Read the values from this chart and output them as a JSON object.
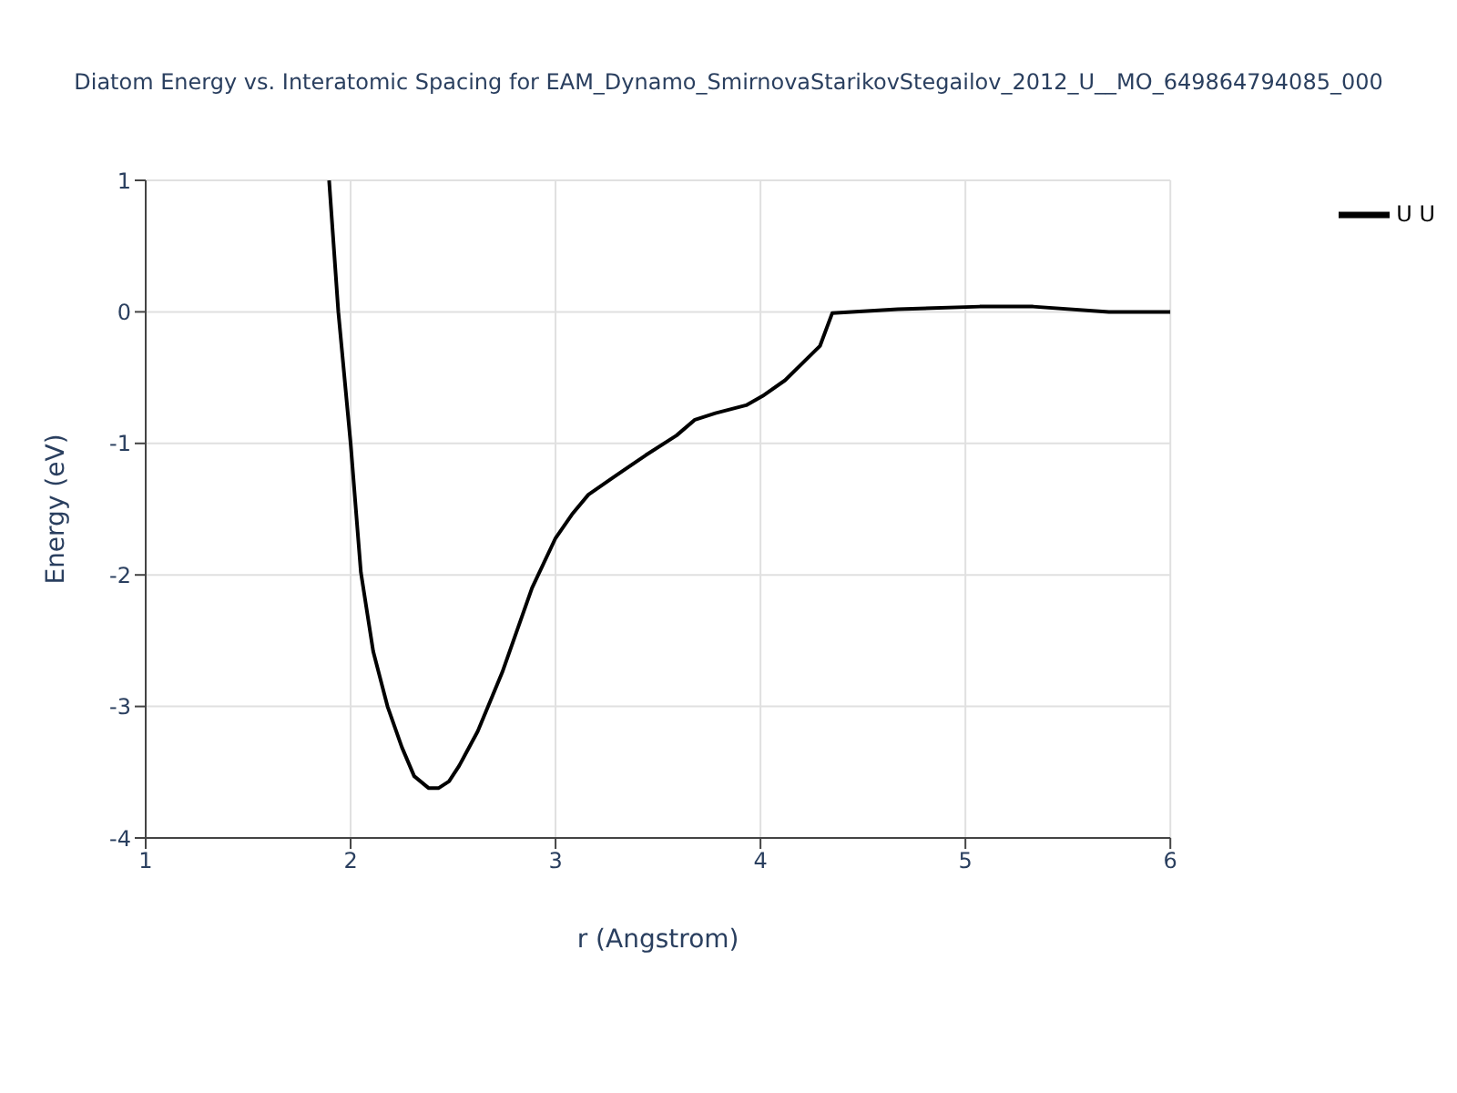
{
  "chart_data": {
    "type": "line",
    "title": "Diatom Energy vs. Interatomic Spacing for EAM_Dynamo_SmirnovaStarikovStegailov_2012_U__MO_649864794085_000",
    "xlabel": "r (Angstrom)",
    "ylabel": "Energy (eV)",
    "x": [
      1.895,
      1.94,
      2.0,
      2.05,
      2.11,
      2.18,
      2.25,
      2.31,
      2.38,
      2.43,
      2.48,
      2.53,
      2.62,
      2.74,
      2.885,
      3.0,
      3.08,
      3.16,
      3.28,
      3.44,
      3.59,
      3.68,
      3.78,
      3.93,
      4.01,
      4.12,
      4.29,
      4.35,
      4.67,
      5.07,
      5.33,
      5.7,
      6.0
    ],
    "series": [
      {
        "name": "U U",
        "color": "#000000",
        "values": [
          1,
          0,
          -1.0,
          -1.98,
          -2.58,
          -3.0,
          -3.31,
          -3.53,
          -3.62,
          -3.62,
          -3.57,
          -3.45,
          -3.19,
          -2.74,
          -2.1,
          -1.72,
          -1.54,
          -1.39,
          -1.26,
          -1.09,
          -0.94,
          -0.82,
          -0.77,
          -0.71,
          -0.64,
          -0.52,
          -0.26,
          -0.01,
          0.02,
          0.04,
          0.04,
          0,
          0
        ]
      }
    ],
    "xlim": [
      1,
      6
    ],
    "xticks": [
      1,
      2,
      3,
      4,
      5,
      6
    ],
    "ylim": [
      -4,
      1
    ],
    "yticks": [
      -4,
      -3,
      -2,
      -1,
      0,
      1
    ],
    "grid": true,
    "legend": "top right",
    "marker": "none",
    "line_style": "solid"
  }
}
